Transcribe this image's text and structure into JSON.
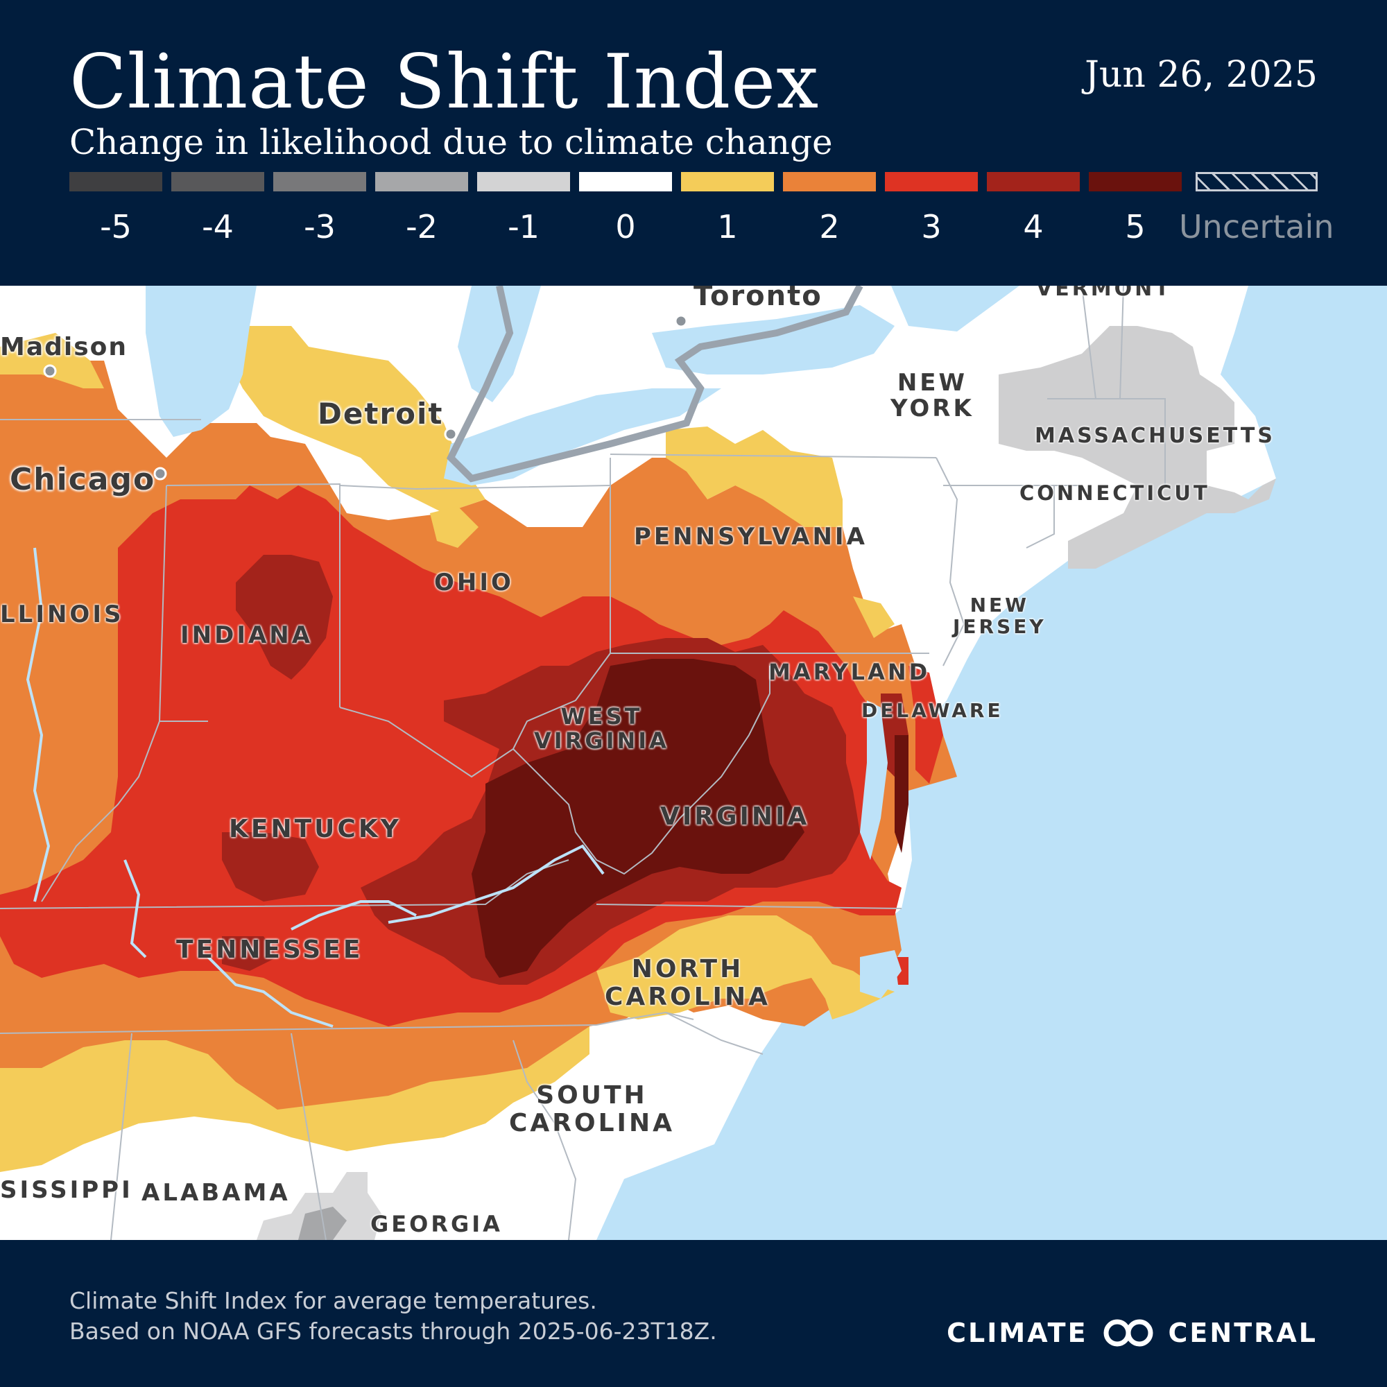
{
  "header": {
    "title": "Climate Shift Index",
    "subtitle": "Change in likelihood due to climate change",
    "date": "Jun 26, 2025"
  },
  "legend": {
    "items": [
      {
        "label": "-5",
        "color": "#3f3f41"
      },
      {
        "label": "-4",
        "color": "#58585a"
      },
      {
        "label": "-3",
        "color": "#78787a"
      },
      {
        "label": "-2",
        "color": "#a6a7a9"
      },
      {
        "label": "-1",
        "color": "#d3d3d4"
      },
      {
        "label": "0",
        "color": "#ffffff"
      },
      {
        "label": "1",
        "color": "#f4cc59"
      },
      {
        "label": "2",
        "color": "#ea8239"
      },
      {
        "label": "3",
        "color": "#de3323"
      },
      {
        "label": "4",
        "color": "#a3231b"
      },
      {
        "label": "5",
        "color": "#6a120d"
      }
    ],
    "uncertain_label": "Uncertain"
  },
  "map": {
    "colors": {
      "water": "#bde2f8",
      "land": "#ffffff",
      "lake": "#bde2f8",
      "uncertain_gray": "#cfcfd0",
      "border": "#9aa3ad"
    },
    "states": {
      "new_york": "NEW\nYORK",
      "massachusetts": "MASSACHUSETTS",
      "connecticut": "CONNECTICUT",
      "vermont": "VERMONT",
      "pennsylvania": "PENNSYLVANIA",
      "new_jersey": "NEW\nJERSEY",
      "ohio": "OHIO",
      "illinois": "LLINOIS",
      "indiana": "INDIANA",
      "maryland": "MARYLAND",
      "delaware": "DELAWARE",
      "west_virginia": "WEST\nVIRGINIA",
      "virginia": "VIRGINIA",
      "kentucky": "KENTUCKY",
      "tennessee": "TENNESSEE",
      "north_carolina": "NORTH\nCAROLINA",
      "south_carolina": "SOUTH\nCAROLINA",
      "mississippi": "SISSIPPI",
      "alabama": "ALABAMA",
      "georgia": "GEORGIA"
    },
    "cities": {
      "toronto": "Toronto",
      "madison": "Madison",
      "detroit": "Detroit",
      "chicago": "Chicago"
    }
  },
  "footer": {
    "line1": "Climate Shift Index for average temperatures.",
    "line2": "Based on NOAA GFS forecasts through 2025-06-23T18Z.",
    "logo_left": "CLIMATE",
    "logo_right": "CENTRAL"
  }
}
